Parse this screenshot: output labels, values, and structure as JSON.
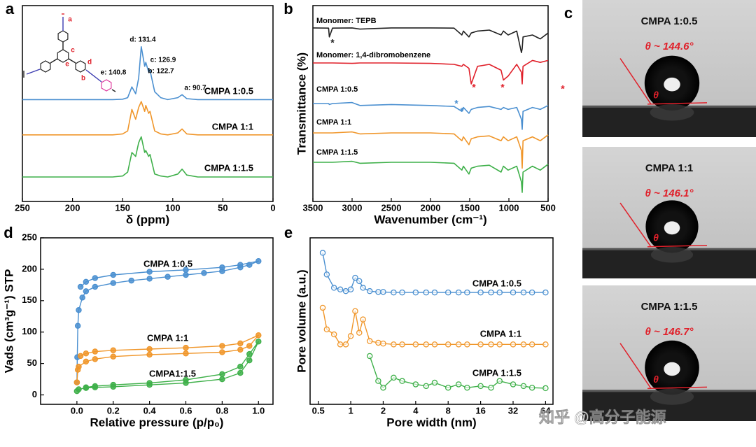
{
  "chart_data": [
    {
      "type": "line",
      "panel_label": "a",
      "xlabel": "δ (ppm)",
      "xlim": [
        250,
        0
      ],
      "ylim": [
        0,
        10
      ],
      "xticks": [
        250,
        200,
        150,
        100,
        50,
        0
      ],
      "x": [
        250,
        200,
        180,
        160,
        150,
        145,
        140.8,
        137,
        134,
        131.4,
        128,
        126.9,
        124,
        122.7,
        118,
        112,
        105,
        95,
        90.7,
        86,
        75,
        50,
        20,
        0
      ],
      "series": [
        {
          "name": "CMPA 1:0.5",
          "color": "#4a8fd0",
          "values": [
            5.2,
            5.2,
            5.2,
            5.2,
            5.22,
            5.3,
            5.85,
            5.5,
            6.3,
            7.9,
            6.9,
            7.1,
            6.6,
            6.7,
            5.6,
            5.3,
            5.2,
            5.3,
            5.45,
            5.25,
            5.2,
            5.2,
            5.2,
            5.2
          ]
        },
        {
          "name": "CMPA 1:1",
          "color": "#f0962a",
          "values": [
            3.4,
            3.4,
            3.4,
            3.4,
            3.45,
            3.6,
            4.7,
            4.2,
            4.8,
            5.1,
            4.6,
            4.9,
            4.5,
            4.6,
            3.6,
            3.45,
            3.4,
            3.5,
            3.7,
            3.45,
            3.4,
            3.4,
            3.4,
            3.4
          ]
        },
        {
          "name": "CMPA 1:1.5",
          "color": "#3fb04a",
          "values": [
            1.25,
            1.25,
            1.25,
            1.25,
            1.3,
            1.5,
            2.5,
            2.3,
            3.0,
            3.3,
            2.5,
            2.6,
            2.3,
            2.4,
            1.4,
            1.3,
            1.25,
            1.4,
            1.65,
            1.35,
            1.25,
            1.25,
            1.25,
            1.25
          ]
        }
      ],
      "annotations": [
        {
          "text": "d: 131.4"
        },
        {
          "text": "c: 126.9"
        },
        {
          "text": "b: 122.7"
        },
        {
          "text": "e: 140.8"
        },
        {
          "text": "a: 90.7"
        }
      ],
      "structure_labels": [
        "a",
        "b",
        "c",
        "d",
        "e"
      ]
    },
    {
      "type": "line",
      "panel_label": "b",
      "xlabel": "Wavenumber (cm⁻¹)",
      "ylabel": "Transmittance (%)",
      "xlim": [
        3500,
        500
      ],
      "ylim": [
        0,
        10
      ],
      "xticks": [
        3500,
        3000,
        2500,
        2000,
        1500,
        1000,
        500
      ],
      "x": [
        3500,
        3300,
        3290,
        3250,
        3000,
        2900,
        2500,
        2000,
        1700,
        1600,
        1580,
        1510,
        1480,
        1400,
        1250,
        1100,
        1070,
        1010,
        900,
        840,
        830,
        820,
        700,
        600,
        500
      ],
      "series": [
        {
          "name": "Monomer: TEPB",
          "color": "#222222",
          "values": [
            8.86,
            8.85,
            8.4,
            8.85,
            8.86,
            8.8,
            8.86,
            8.86,
            8.85,
            8.5,
            8.7,
            8.4,
            8.6,
            8.7,
            8.75,
            8.5,
            8.7,
            8.5,
            8.7,
            7.6,
            7.8,
            8.4,
            8.5,
            8.3,
            8.6
          ]
        },
        {
          "name": "Monomer: 1,4-dibromobenzene",
          "color": "#e0202a",
          "values": [
            7.07,
            7.07,
            7.07,
            7.07,
            7.05,
            7.07,
            7.07,
            7.05,
            7.0,
            6.9,
            7.0,
            6.8,
            6.0,
            6.9,
            7.0,
            6.7,
            6.2,
            6.4,
            7.0,
            6.6,
            6.0,
            6.9,
            7.2,
            7.1,
            7.2
          ]
        },
        {
          "name": "CMPA 1:0.5",
          "color": "#4a8fd0",
          "values": [
            5.0,
            5.0,
            4.95,
            5.0,
            5.05,
            4.9,
            4.95,
            4.9,
            4.85,
            4.6,
            4.8,
            4.5,
            4.7,
            4.8,
            4.85,
            4.7,
            4.8,
            4.7,
            4.8,
            4.2,
            3.68,
            4.6,
            4.8,
            4.7,
            4.9
          ]
        },
        {
          "name": "CMPA 1:1",
          "color": "#f0962a",
          "values": [
            3.5,
            3.5,
            3.5,
            3.5,
            3.55,
            3.45,
            3.5,
            3.5,
            3.45,
            3.1,
            3.3,
            2.9,
            3.2,
            3.3,
            3.35,
            3.1,
            3.3,
            3.1,
            3.3,
            2.6,
            1.7,
            3.1,
            3.3,
            3.1,
            3.4
          ]
        },
        {
          "name": "CMPA 1:1.5",
          "color": "#3fb04a",
          "values": [
            2.0,
            2.0,
            2.0,
            2.0,
            2.05,
            1.95,
            2.0,
            2.0,
            1.95,
            1.6,
            1.8,
            1.4,
            1.7,
            1.8,
            1.85,
            1.5,
            1.8,
            1.6,
            1.8,
            1.0,
            0.46,
            1.5,
            1.8,
            1.6,
            1.9
          ]
        }
      ],
      "annotations": [
        {
          "text": "*",
          "color": "#222222"
        },
        {
          "text": "*",
          "color": "#e0202a"
        },
        {
          "text": "*",
          "color": "#e0202a"
        },
        {
          "text": "*",
          "color": "#e0202a"
        },
        {
          "text": "*",
          "color": "#4a8fd0"
        },
        {
          "text": "*",
          "color": "#4a8fd0"
        }
      ]
    },
    {
      "type": "scatter",
      "panel_label": "d",
      "xlabel": "Relative pressure (p/p₀)",
      "ylabel": "Vads (cm³g⁻¹) STP",
      "xlim": [
        -0.2,
        1.08
      ],
      "ylim": [
        -15,
        250
      ],
      "xticks": [
        {
          "value": 0,
          "label": "0.0"
        },
        {
          "value": 0.2,
          "label": "0.2"
        },
        {
          "value": 0.4,
          "label": "0.4"
        },
        {
          "value": 0.6,
          "label": "0.6"
        },
        {
          "value": 0.8,
          "label": "0.8"
        },
        {
          "value": 1,
          "label": "1.0"
        }
      ],
      "yticks": [
        0,
        50,
        100,
        150,
        200,
        250
      ],
      "series": [
        {
          "name": "CMPA 1:0.5",
          "color": "#4a8fd0",
          "x": [
            0,
            0.002,
            0.005,
            0.01,
            0.03,
            0.05,
            0.1,
            0.2,
            0.3,
            0.4,
            0.5,
            0.6,
            0.7,
            0.8,
            0.9,
            0.95,
            1.0,
            0.9,
            0.8,
            0.6,
            0.4,
            0.2,
            0.1,
            0.05,
            0.02
          ],
          "values": [
            20,
            60,
            110,
            135,
            155,
            165,
            172,
            178,
            182,
            185,
            188,
            191,
            194,
            197,
            203,
            207,
            213,
            207,
            203,
            199,
            196,
            191,
            186,
            180,
            172
          ]
        },
        {
          "name": "CMPA 1:1",
          "color": "#f0962a",
          "x": [
            0,
            0.005,
            0.01,
            0.05,
            0.1,
            0.2,
            0.4,
            0.6,
            0.8,
            0.9,
            0.95,
            1.0,
            0.9,
            0.8,
            0.6,
            0.4,
            0.2,
            0.1,
            0.05,
            0.02
          ],
          "values": [
            20,
            40,
            45,
            53,
            57,
            61,
            64,
            66,
            68,
            72,
            78,
            95,
            82,
            78,
            75,
            73,
            71,
            69,
            66,
            62
          ]
        },
        {
          "name": "CMPA1:1.5",
          "color": "#3fb04a",
          "x": [
            0,
            0.01,
            0.05,
            0.1,
            0.2,
            0.4,
            0.6,
            0.8,
            0.9,
            0.95,
            1.0,
            0.95,
            0.9,
            0.8,
            0.6,
            0.4,
            0.2,
            0.1,
            0.05
          ],
          "values": [
            6,
            9,
            11,
            12,
            13,
            16,
            19,
            25,
            35,
            55,
            85,
            65,
            45,
            33,
            24,
            19,
            16,
            14,
            12
          ]
        }
      ]
    },
    {
      "type": "scatter",
      "panel_label": "e",
      "xlabel": "Pore width (nm)",
      "ylabel": "Pore volume (a.u.)",
      "xscale": "log",
      "xlim": [
        0.42,
        75
      ],
      "ylim": [
        0,
        10
      ],
      "xticks": [
        0.5,
        1,
        2,
        4,
        8,
        16,
        32,
        64
      ],
      "x": [
        0.55,
        0.6,
        0.7,
        0.8,
        0.9,
        1.0,
        1.1,
        1.2,
        1.3,
        1.5,
        1.8,
        2,
        2.5,
        3,
        4,
        5,
        6,
        8,
        10,
        12,
        16,
        20,
        24,
        32,
        40,
        48,
        64
      ],
      "series": [
        {
          "name": "CMPA 1:0.5",
          "color": "#4a8fd0",
          "values": [
            9.1,
            7.8,
            7.0,
            6.9,
            6.8,
            6.9,
            7.6,
            7.4,
            7.0,
            6.8,
            6.75,
            6.75,
            6.72,
            6.72,
            6.72,
            6.72,
            6.72,
            6.72,
            6.72,
            6.72,
            6.72,
            6.72,
            6.72,
            6.72,
            6.72,
            6.72,
            6.72
          ]
        },
        {
          "name": "CMPA 1:1",
          "color": "#f0962a",
          "values": [
            5.8,
            4.5,
            4.2,
            3.6,
            3.6,
            4.1,
            5.6,
            4.3,
            5.1,
            3.8,
            3.7,
            3.65,
            3.6,
            3.6,
            3.6,
            3.6,
            3.6,
            3.6,
            3.6,
            3.6,
            3.6,
            3.6,
            3.6,
            3.6,
            3.6,
            3.6,
            3.6
          ]
        },
        {
          "name": "CMPA 1:1.5",
          "color": "#3fb04a",
          "values": [
            null,
            null,
            null,
            null,
            null,
            null,
            null,
            null,
            null,
            2.9,
            1.4,
            1.0,
            1.6,
            1.4,
            1.2,
            1.1,
            1.3,
            1.0,
            1.2,
            1.0,
            1.1,
            1.0,
            1.4,
            1.2,
            1.1,
            1.0,
            0.97
          ]
        }
      ]
    }
  ],
  "contact_angle": {
    "panel_label": "c",
    "panels": [
      {
        "title": "CMPA 1:0.5",
        "angle": "θ ~ 144.6°",
        "theta": "θ"
      },
      {
        "title": "CMPA 1:1",
        "angle": "θ ~ 146.1°",
        "theta": "θ"
      },
      {
        "title": "CMPA 1:1.5",
        "angle": "θ ~ 146.7°",
        "theta": "θ"
      }
    ]
  },
  "watermark": "知乎 @高分子能源"
}
